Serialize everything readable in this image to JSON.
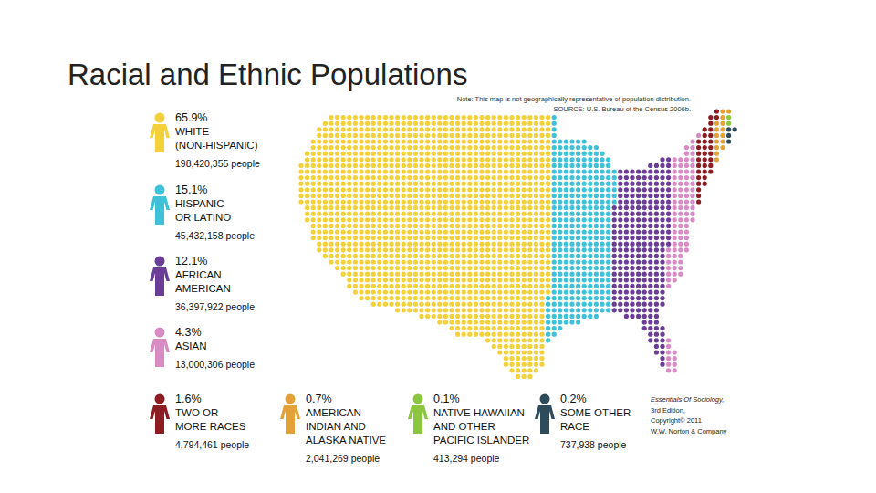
{
  "chart_data": {
    "type": "waffle",
    "title": "Racial and Ethnic Populations",
    "note": "Note: This map is not geographically representative of population distribution.",
    "source": "SOURCE: U.S. Bureau of the Census 2006b.",
    "categories": [
      [
        "WHITE",
        "(NON-HISPANIC)"
      ],
      [
        "HISPANIC",
        "OR LATINO"
      ],
      [
        "AFRICAN",
        "AMERICAN"
      ],
      [
        "ASIAN"
      ],
      [
        "TWO OR",
        "MORE RACES"
      ],
      [
        "AMERICAN",
        "INDIAN AND",
        "ALASKA NATIVE"
      ],
      [
        "NATIVE HAWAIIAN",
        "AND OTHER",
        "PACIFIC ISLANDER"
      ],
      [
        "SOME OTHER",
        "RACE"
      ]
    ],
    "values": [
      65.9,
      15.1,
      12.1,
      4.3,
      1.6,
      0.7,
      0.1,
      0.2
    ],
    "value_labels": [
      "65.9%",
      "15.1%",
      "12.1%",
      "4.3%",
      "1.6%",
      "0.7%",
      "0.1%",
      "0.2%"
    ],
    "people": [
      198420355,
      45432158,
      36397922,
      13000306,
      4794461,
      2041269,
      413294,
      737938
    ],
    "people_labels": [
      "198,420,355 people",
      "45,432,158 people",
      "36,397,922 people",
      "13,000,306 people",
      "4,794,461 people",
      "2,041,269 people",
      "413,294 people",
      "737,938 people"
    ],
    "colors": [
      "#f4d03a",
      "#3fc1d9",
      "#6a3d97",
      "#d98bc3",
      "#8b1c22",
      "#e3a238",
      "#8cc640",
      "#2e4b5c"
    ],
    "annotations": [
      "Essentials Of Sociology,",
      "3rd Edition,",
      "Copyright© 2011",
      "W.W. Norton & Company"
    ],
    "data_labels": true
  }
}
